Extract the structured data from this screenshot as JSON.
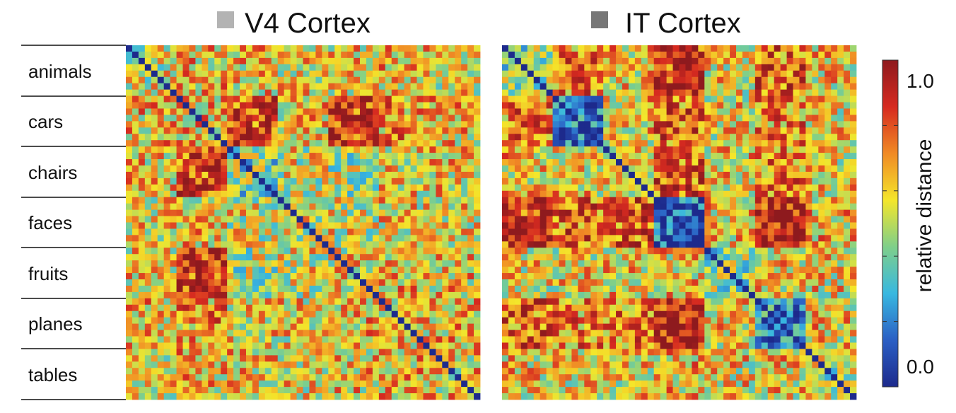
{
  "chart_data": [
    {
      "type": "heatmap",
      "title": "V4 Cortex",
      "title_swatch_color": "#b3b3b3",
      "categories": [
        "animals",
        "cars",
        "chairs",
        "faces",
        "fruits",
        "planes",
        "tables"
      ],
      "items_per_category": 8,
      "within_category_distance": [
        0.55,
        0.62,
        0.42,
        0.55,
        0.58,
        0.58,
        0.6
      ],
      "between_category_distance": [
        [
          0.55,
          0.62,
          0.6,
          0.58,
          0.6,
          0.62,
          0.58
        ],
        [
          0.62,
          0.62,
          0.82,
          0.6,
          0.85,
          0.68,
          0.62
        ],
        [
          0.6,
          0.82,
          0.42,
          0.55,
          0.5,
          0.58,
          0.6
        ],
        [
          0.58,
          0.6,
          0.55,
          0.55,
          0.55,
          0.58,
          0.58
        ],
        [
          0.6,
          0.85,
          0.5,
          0.55,
          0.58,
          0.62,
          0.6
        ],
        [
          0.62,
          0.68,
          0.58,
          0.58,
          0.62,
          0.58,
          0.62
        ],
        [
          0.58,
          0.62,
          0.6,
          0.58,
          0.6,
          0.62,
          0.6
        ]
      ],
      "diagonal_value": 0.0,
      "value_range": [
        0.0,
        1.0
      ]
    },
    {
      "type": "heatmap",
      "title": "IT Cortex",
      "title_swatch_color": "#777777",
      "categories": [
        "animals",
        "cars",
        "chairs",
        "faces",
        "fruits",
        "planes",
        "tables"
      ],
      "items_per_category": 8,
      "within_category_distance": [
        0.45,
        0.15,
        0.55,
        0.12,
        0.45,
        0.2,
        0.5
      ],
      "between_category_distance": [
        [
          0.45,
          0.72,
          0.62,
          0.85,
          0.58,
          0.75,
          0.6
        ],
        [
          0.72,
          0.15,
          0.6,
          0.75,
          0.58,
          0.7,
          0.58
        ],
        [
          0.62,
          0.6,
          0.55,
          0.78,
          0.6,
          0.72,
          0.58
        ],
        [
          0.85,
          0.75,
          0.78,
          0.12,
          0.62,
          0.9,
          0.62
        ],
        [
          0.58,
          0.58,
          0.6,
          0.62,
          0.45,
          0.6,
          0.58
        ],
        [
          0.75,
          0.7,
          0.72,
          0.9,
          0.6,
          0.2,
          0.6
        ],
        [
          0.6,
          0.58,
          0.58,
          0.62,
          0.58,
          0.6,
          0.5
        ]
      ],
      "diagonal_value": 0.0,
      "value_range": [
        0.0,
        1.0
      ]
    }
  ],
  "colorbar": {
    "label": "relative distance",
    "tick_labels": [
      "1.0",
      "0.0"
    ],
    "range": [
      0.0,
      1.0
    ],
    "colormap": [
      "#1d2a8c",
      "#2b5fc4",
      "#38b8e0",
      "#7fcf8a",
      "#f4e62a",
      "#f08a25",
      "#d62a20",
      "#8e1a1e"
    ]
  }
}
